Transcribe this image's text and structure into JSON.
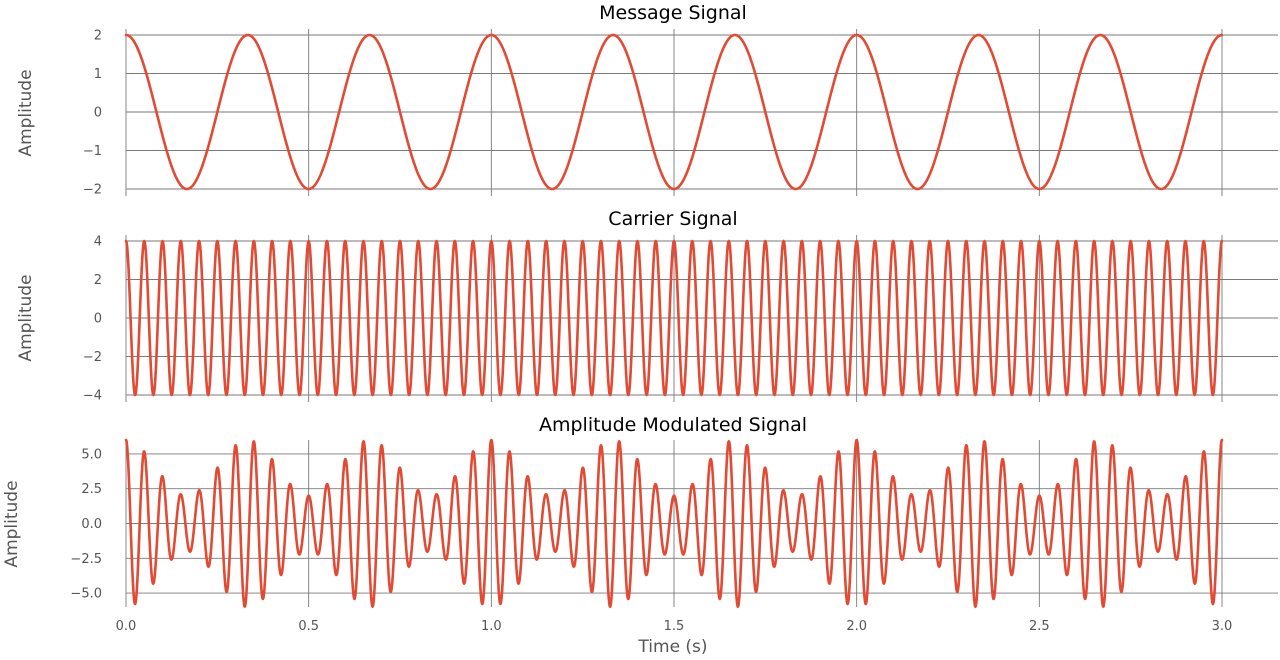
{
  "colors": {
    "series": "#E24A33",
    "grid": "#7a7a7a",
    "text": "#555555",
    "title": "#000000"
  },
  "chart_data": [
    {
      "type": "line",
      "title": "Message Signal",
      "xlabel": "",
      "ylabel": "Amplitude",
      "xlim": [
        0,
        3
      ],
      "ylim": [
        -2,
        2
      ],
      "x_ticks": [
        "0.0",
        "0.5",
        "1.0",
        "1.5",
        "2.0",
        "2.5",
        "3.0"
      ],
      "y_ticks": [
        "−2",
        "−1",
        "0",
        "1",
        "2"
      ],
      "grid": true,
      "series": [
        {
          "function": "A*cos(2*pi*f*t)",
          "A": 2,
          "f": 3,
          "t_range": [
            0,
            3
          ]
        }
      ]
    },
    {
      "type": "line",
      "title": "Carrier Signal",
      "xlabel": "",
      "ylabel": "Amplitude",
      "xlim": [
        0,
        3
      ],
      "ylim": [
        -4,
        4
      ],
      "x_ticks": [
        "0.0",
        "0.5",
        "1.0",
        "1.5",
        "2.0",
        "2.5",
        "3.0"
      ],
      "y_ticks": [
        "−4",
        "−2",
        "0",
        "2",
        "4"
      ],
      "grid": true,
      "series": [
        {
          "function": "A*cos(2*pi*f*t)",
          "A": 4,
          "f": 20,
          "t_range": [
            0,
            3
          ]
        }
      ]
    },
    {
      "type": "line",
      "title": "Amplitude Modulated Signal",
      "xlabel": "Time (s)",
      "ylabel": "Amplitude",
      "xlim": [
        0,
        3
      ],
      "ylim": [
        -6,
        6
      ],
      "x_ticks": [
        "0.0",
        "0.5",
        "1.0",
        "1.5",
        "2.0",
        "2.5",
        "3.0"
      ],
      "y_ticks": [
        "−5.0",
        "−2.5",
        "0.0",
        "2.5",
        "5.0"
      ],
      "grid": true,
      "series": [
        {
          "function": "(Ac + Am*cos(2*pi*fm*t))*cos(2*pi*fc*t)",
          "Ac": 4,
          "Am": 2,
          "fm": 3,
          "fc": 20,
          "t_range": [
            0,
            3
          ]
        }
      ]
    }
  ]
}
